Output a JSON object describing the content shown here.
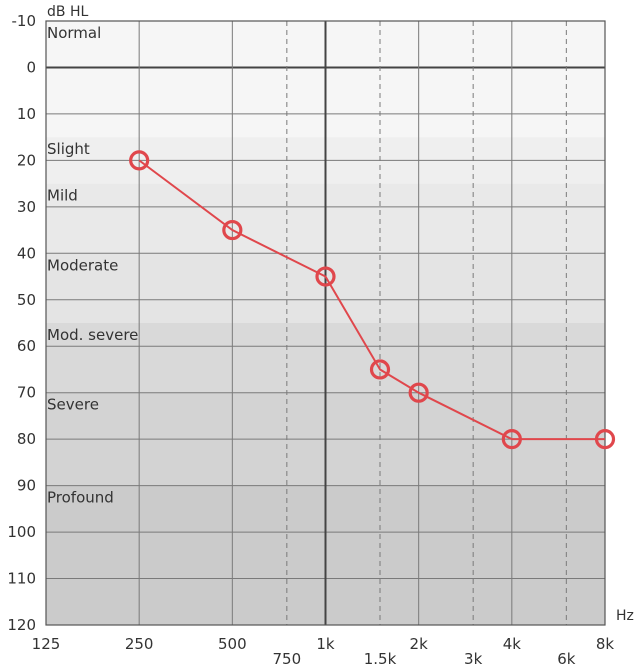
{
  "chart_data": {
    "type": "line",
    "title": "",
    "ylabel": "dB HL",
    "xlabel": "Hz",
    "y_axis": {
      "range": [
        -10,
        120
      ],
      "inverted": true,
      "ticks": [
        "-10",
        "0",
        "10",
        "20",
        "30",
        "40",
        "50",
        "60",
        "70",
        "80",
        "90",
        "100",
        "110",
        "120"
      ]
    },
    "x_axis": {
      "scale": "log",
      "range": [
        125,
        8000
      ],
      "major_ticks": [
        {
          "value": 125,
          "label": "125"
        },
        {
          "value": 250,
          "label": "250"
        },
        {
          "value": 500,
          "label": "500"
        },
        {
          "value": 1000,
          "label": "1k"
        },
        {
          "value": 2000,
          "label": "2k"
        },
        {
          "value": 4000,
          "label": "4k"
        },
        {
          "value": 8000,
          "label": "8k"
        }
      ],
      "minor_ticks": [
        {
          "value": 750,
          "label": "750"
        },
        {
          "value": 1500,
          "label": "1.5k"
        },
        {
          "value": 3000,
          "label": "3k"
        },
        {
          "value": 6000,
          "label": "6k"
        }
      ]
    },
    "grid": true,
    "zones": [
      {
        "label": "Normal",
        "from": -10,
        "to": 15,
        "color": "#f6f6f6"
      },
      {
        "label": "Slight",
        "from": 15,
        "to": 25,
        "color": "#efefef"
      },
      {
        "label": "Mild",
        "from": 25,
        "to": 40,
        "color": "#e9e9e9"
      },
      {
        "label": "Moderate",
        "from": 40,
        "to": 55,
        "color": "#e4e4e4"
      },
      {
        "label": "Mod. severe",
        "from": 55,
        "to": 70,
        "color": "#d9d9d9"
      },
      {
        "label": "Severe",
        "from": 70,
        "to": 90,
        "color": "#d3d3d3"
      },
      {
        "label": "Profound",
        "from": 90,
        "to": 120,
        "color": "#cbcbcb"
      }
    ],
    "series": [
      {
        "color": "#e0474c",
        "marker": "circle",
        "x": [
          250,
          500,
          1000,
          1500,
          2000,
          4000,
          8000
        ],
        "y": [
          20,
          35,
          45,
          65,
          70,
          80,
          80
        ]
      }
    ]
  }
}
